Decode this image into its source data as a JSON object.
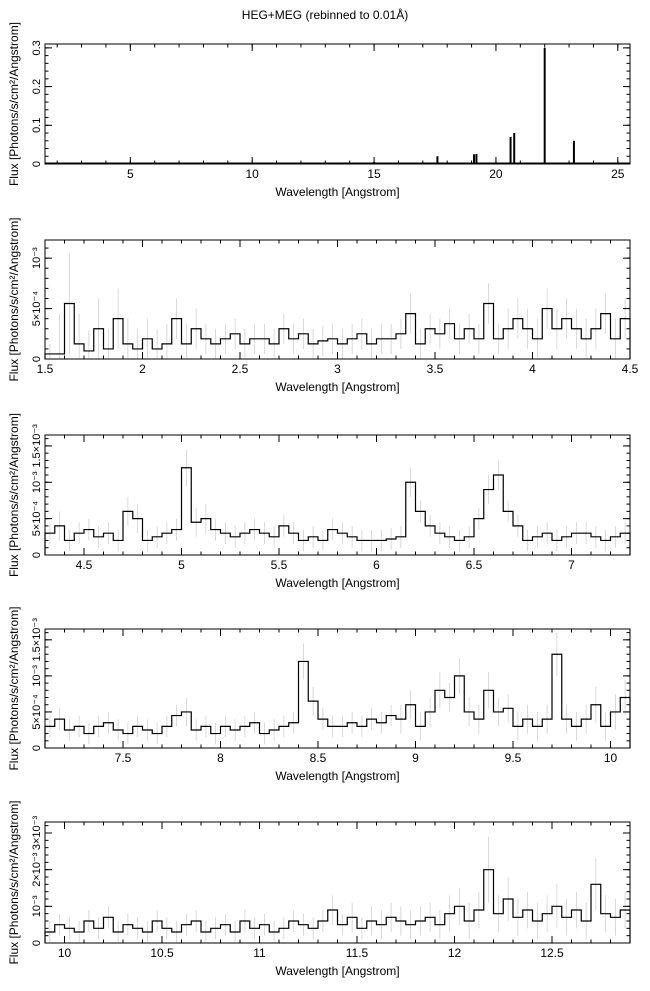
{
  "title": "HEG+MEG (rebinned to 0.01Å)",
  "chart_data": [
    {
      "type": "line",
      "xlabel": "Wavelength [Angstrom]",
      "ylabel": "Flux [Photons/s/cm²/Angstrom]",
      "xlim": [
        1.5,
        25.5
      ],
      "ylim": [
        0,
        0.31
      ],
      "xticks": [
        5,
        10,
        15,
        20,
        25
      ],
      "xtick_labels": [
        "5",
        "10",
        "15",
        "20",
        "25"
      ],
      "yticks": [
        0,
        0.1,
        0.2,
        0.3
      ],
      "ytick_labels": [
        "0",
        "0.1",
        "0.2",
        "0.3"
      ],
      "baseline": 0.002,
      "lines": [
        {
          "x": 13.8,
          "y": 0.004
        },
        {
          "x": 15.0,
          "y": 0.005
        },
        {
          "x": 16.0,
          "y": 0.004
        },
        {
          "x": 17.6,
          "y": 0.02
        },
        {
          "x": 19.1,
          "y": 0.025
        },
        {
          "x": 19.2,
          "y": 0.026
        },
        {
          "x": 20.6,
          "y": 0.07
        },
        {
          "x": 20.75,
          "y": 0.08
        },
        {
          "x": 22.0,
          "y": 0.3
        },
        {
          "x": 23.2,
          "y": 0.06
        }
      ]
    },
    {
      "type": "line",
      "xlabel": "Wavelength [Angstrom]",
      "ylabel": "Flux [Photons/s/cm²/Angstrom]",
      "xlim": [
        1.5,
        4.5
      ],
      "ylim": [
        0,
        0.00118
      ],
      "xticks": [
        1.5,
        2,
        2.5,
        3,
        3.5,
        4,
        4.5
      ],
      "xtick_labels": [
        "1.5",
        "2",
        "2.5",
        "3",
        "3.5",
        "4",
        "4.5"
      ],
      "yticks": [
        0,
        0.0005,
        0.001
      ],
      "ytick_labels": [
        "0",
        "5×10⁻⁴",
        "10⁻³"
      ],
      "spectrum": {
        "x": [
          1.5,
          1.55,
          1.6,
          1.65,
          1.7,
          1.75,
          1.8,
          1.85,
          1.9,
          1.95,
          2.0,
          2.05,
          2.1,
          2.15,
          2.2,
          2.25,
          2.3,
          2.35,
          2.4,
          2.45,
          2.5,
          2.55,
          2.6,
          2.65,
          2.7,
          2.75,
          2.8,
          2.85,
          2.9,
          2.95,
          3.0,
          3.05,
          3.1,
          3.15,
          3.2,
          3.25,
          3.3,
          3.35,
          3.4,
          3.45,
          3.5,
          3.55,
          3.6,
          3.65,
          3.7,
          3.75,
          3.8,
          3.85,
          3.9,
          3.95,
          4.0,
          4.05,
          4.1,
          4.15,
          4.2,
          4.25,
          4.3,
          4.35,
          4.4,
          4.45
        ],
        "y": [
          5e-05,
          5e-05,
          0.00055,
          0.00015,
          8e-05,
          0.0003,
          0.0001,
          0.0004,
          0.00015,
          0.0001,
          0.0002,
          0.0001,
          0.00015,
          0.0004,
          0.00015,
          0.0003,
          0.0002,
          0.00015,
          0.0002,
          0.00025,
          0.00015,
          0.0002,
          0.0002,
          0.00015,
          0.0003,
          0.0002,
          0.00025,
          0.00015,
          0.00018,
          0.0002,
          0.00015,
          0.0002,
          0.00025,
          0.00015,
          0.0002,
          0.0002,
          0.00025,
          0.00045,
          0.00015,
          0.0003,
          0.00025,
          0.00035,
          0.0002,
          0.0003,
          0.0002,
          0.00055,
          0.0002,
          0.0003,
          0.0004,
          0.0003,
          0.0002,
          0.0005,
          0.0003,
          0.0004,
          0.0003,
          0.0002,
          0.0003,
          0.00045,
          0.0002,
          0.0004
        ],
        "err": [
          0.0001,
          0.0004,
          0.0005,
          0.0003,
          0.0002,
          0.0003,
          0.0002,
          0.0003,
          0.00025,
          0.0002,
          0.0002,
          0.0002,
          0.0002,
          0.0002,
          0.0002,
          0.0002,
          0.00015,
          0.00015,
          0.00015,
          0.00015,
          0.00015,
          0.00015,
          0.00015,
          0.00015,
          0.00015,
          0.00015,
          0.00015,
          0.00015,
          0.00015,
          0.00015,
          0.00015,
          0.00015,
          0.00015,
          0.00015,
          0.00015,
          0.00015,
          0.00015,
          0.0002,
          0.00015,
          0.00015,
          0.00015,
          0.00015,
          0.00015,
          0.00015,
          0.00015,
          0.0002,
          0.00015,
          0.0002,
          0.0002,
          0.0002,
          0.0002,
          0.0002,
          0.0002,
          0.0002,
          0.0002,
          0.0002,
          0.0002,
          0.0002,
          0.0002,
          0.0002
        ]
      }
    },
    {
      "type": "line",
      "xlabel": "Wavelength [Angstrom]",
      "ylabel": "Flux [Photons/s/cm²/Angstrom]",
      "xlim": [
        4.3,
        7.3
      ],
      "ylim": [
        0,
        0.00165
      ],
      "xticks": [
        4.5,
        5,
        5.5,
        6,
        6.5,
        7
      ],
      "xtick_labels": [
        "4.5",
        "5",
        "5.5",
        "6",
        "6.5",
        "7"
      ],
      "yticks": [
        0,
        0.0005,
        0.001,
        0.0015
      ],
      "ytick_labels": [
        "0",
        "5×10⁻⁴",
        "10⁻³",
        "1.5×10⁻³"
      ],
      "spectrum": {
        "x": [
          4.3,
          4.35,
          4.4,
          4.45,
          4.5,
          4.55,
          4.6,
          4.65,
          4.7,
          4.75,
          4.8,
          4.85,
          4.9,
          4.95,
          5.0,
          5.05,
          5.1,
          5.15,
          5.2,
          5.25,
          5.3,
          5.35,
          5.4,
          5.45,
          5.5,
          5.55,
          5.6,
          5.65,
          5.7,
          5.75,
          5.8,
          5.85,
          5.9,
          5.95,
          6.0,
          6.05,
          6.1,
          6.15,
          6.2,
          6.25,
          6.3,
          6.35,
          6.4,
          6.45,
          6.5,
          6.55,
          6.6,
          6.65,
          6.7,
          6.75,
          6.8,
          6.85,
          6.9,
          6.95,
          7.0,
          7.05,
          7.1,
          7.15,
          7.2,
          7.25
        ],
        "y": [
          0.0003,
          0.0004,
          0.0002,
          0.0003,
          0.00035,
          0.00025,
          0.0003,
          0.0002,
          0.0006,
          0.0005,
          0.0002,
          0.00025,
          0.0003,
          0.00035,
          0.0012,
          0.00045,
          0.0005,
          0.00035,
          0.0003,
          0.00025,
          0.0003,
          0.00035,
          0.0003,
          0.00025,
          0.0004,
          0.0003,
          0.0002,
          0.00025,
          0.0002,
          0.00035,
          0.0003,
          0.00025,
          0.0002,
          0.0002,
          0.0002,
          0.00022,
          0.00025,
          0.001,
          0.0006,
          0.0004,
          0.0003,
          0.00025,
          0.0002,
          0.00025,
          0.0005,
          0.0009,
          0.0011,
          0.0006,
          0.0004,
          0.0002,
          0.00025,
          0.0003,
          0.0002,
          0.00025,
          0.0003,
          0.0003,
          0.00025,
          0.0002,
          0.00025,
          0.0003
        ],
        "err": [
          0.00015,
          0.0002,
          0.00015,
          0.00015,
          0.00015,
          0.00015,
          0.00015,
          0.00015,
          0.0002,
          0.0002,
          0.00015,
          0.00015,
          0.00015,
          0.00015,
          0.00025,
          0.0002,
          0.0002,
          0.00015,
          0.00015,
          0.00015,
          0.00015,
          0.00015,
          0.00015,
          0.00015,
          0.00015,
          0.00015,
          0.00015,
          0.00015,
          0.00015,
          0.00015,
          0.00015,
          0.00015,
          0.00015,
          0.00015,
          0.00015,
          0.00015,
          0.00015,
          0.0002,
          0.00015,
          0.00015,
          0.00015,
          0.00015,
          0.00015,
          0.00015,
          0.00015,
          0.0002,
          0.0002,
          0.00015,
          0.00015,
          0.00015,
          0.00015,
          0.00015,
          0.00015,
          0.00015,
          0.00015,
          0.00015,
          0.00015,
          0.00015,
          0.00015,
          0.00015
        ]
      }
    },
    {
      "type": "line",
      "xlabel": "Wavelength [Angstrom]",
      "ylabel": "Flux [Photons/s/cm²/Angstrom]",
      "xlim": [
        7.1,
        10.1
      ],
      "ylim": [
        0,
        0.00165
      ],
      "xticks": [
        7.5,
        8,
        8.5,
        9,
        9.5,
        10
      ],
      "xtick_labels": [
        "7.5",
        "8",
        "8.5",
        "9",
        "9.5",
        "10"
      ],
      "yticks": [
        0,
        0.0005,
        0.001,
        0.0015
      ],
      "ytick_labels": [
        "0",
        "5×10⁻⁴",
        "10⁻³",
        "1.5×10⁻³"
      ],
      "spectrum": {
        "x": [
          7.1,
          7.15,
          7.2,
          7.25,
          7.3,
          7.35,
          7.4,
          7.45,
          7.5,
          7.55,
          7.6,
          7.65,
          7.7,
          7.75,
          7.8,
          7.85,
          7.9,
          7.95,
          8.0,
          8.05,
          8.1,
          8.15,
          8.2,
          8.25,
          8.3,
          8.35,
          8.4,
          8.45,
          8.5,
          8.55,
          8.6,
          8.65,
          8.7,
          8.75,
          8.8,
          8.85,
          8.9,
          8.95,
          9.0,
          9.05,
          9.1,
          9.15,
          9.2,
          9.25,
          9.3,
          9.35,
          9.4,
          9.45,
          9.5,
          9.55,
          9.6,
          9.65,
          9.7,
          9.75,
          9.8,
          9.85,
          9.9,
          9.95,
          10.0,
          10.05
        ],
        "y": [
          0.0003,
          0.0004,
          0.00025,
          0.0003,
          0.0002,
          0.0003,
          0.00035,
          0.00025,
          0.0002,
          0.0003,
          0.00025,
          0.0002,
          0.0003,
          0.00045,
          0.0005,
          0.00025,
          0.0003,
          0.0002,
          0.0003,
          0.00025,
          0.0003,
          0.00035,
          0.0002,
          0.00025,
          0.0003,
          0.00035,
          0.0012,
          0.00065,
          0.0004,
          0.0003,
          0.0003,
          0.00035,
          0.0003,
          0.0004,
          0.00035,
          0.00045,
          0.0004,
          0.0006,
          0.0003,
          0.0005,
          0.0008,
          0.0007,
          0.001,
          0.0005,
          0.0004,
          0.0008,
          0.0005,
          0.00055,
          0.0003,
          0.0004,
          0.0003,
          0.0004,
          0.0013,
          0.0004,
          0.0003,
          0.0004,
          0.0006,
          0.0003,
          0.0005,
          0.0007
        ],
        "err": [
          0.00015,
          0.00015,
          0.00015,
          0.00015,
          0.00015,
          0.00015,
          0.00015,
          0.00015,
          0.00015,
          0.00015,
          0.00015,
          0.00015,
          0.00015,
          0.00015,
          0.0002,
          0.00015,
          0.00015,
          0.00015,
          0.00015,
          0.00015,
          0.00015,
          0.00015,
          0.00015,
          0.00015,
          0.00015,
          0.00015,
          0.00025,
          0.0002,
          0.00015,
          0.00015,
          0.00015,
          0.00015,
          0.00015,
          0.00015,
          0.00015,
          0.00015,
          0.0002,
          0.0002,
          0.0002,
          0.0002,
          0.00025,
          0.0002,
          0.00025,
          0.0002,
          0.0002,
          0.00025,
          0.0002,
          0.0002,
          0.0002,
          0.0002,
          0.0002,
          0.0002,
          0.0003,
          0.0002,
          0.0002,
          0.0002,
          0.00025,
          0.0002,
          0.00025,
          0.00025
        ]
      }
    },
    {
      "type": "line",
      "xlabel": "Wavelength [Angstrom]",
      "ylabel": "Flux [Photons/s/cm²/Angstrom]",
      "xlim": [
        9.9,
        12.9
      ],
      "ylim": [
        0,
        0.0033
      ],
      "xticks": [
        10,
        10.5,
        11,
        11.5,
        12,
        12.5
      ],
      "xtick_labels": [
        "10",
        "10.5",
        "11",
        "11.5",
        "12",
        "12.5"
      ],
      "yticks": [
        0,
        0.001,
        0.002,
        0.003
      ],
      "ytick_labels": [
        "0",
        "10⁻³",
        "2×10⁻³",
        "3×10⁻³"
      ],
      "spectrum": {
        "x": [
          9.9,
          9.95,
          10.0,
          10.05,
          10.1,
          10.15,
          10.2,
          10.25,
          10.3,
          10.35,
          10.4,
          10.45,
          10.5,
          10.55,
          10.6,
          10.65,
          10.7,
          10.75,
          10.8,
          10.85,
          10.9,
          10.95,
          11.0,
          11.05,
          11.1,
          11.15,
          11.2,
          11.25,
          11.3,
          11.35,
          11.4,
          11.45,
          11.5,
          11.55,
          11.6,
          11.65,
          11.7,
          11.75,
          11.8,
          11.85,
          11.9,
          11.95,
          12.0,
          12.05,
          12.1,
          12.15,
          12.2,
          12.25,
          12.3,
          12.35,
          12.4,
          12.45,
          12.5,
          12.55,
          12.6,
          12.65,
          12.7,
          12.75,
          12.8,
          12.85
        ],
        "y": [
          0.0003,
          0.0005,
          0.0004,
          0.0003,
          0.0006,
          0.0004,
          0.0007,
          0.0003,
          0.0005,
          0.0004,
          0.0003,
          0.0006,
          0.0004,
          0.0003,
          0.0005,
          0.0006,
          0.0003,
          0.0004,
          0.0005,
          0.0003,
          0.0006,
          0.0004,
          0.0005,
          0.0003,
          0.0004,
          0.0006,
          0.0005,
          0.0004,
          0.0006,
          0.0009,
          0.0005,
          0.0007,
          0.0004,
          0.0006,
          0.0005,
          0.0007,
          0.0006,
          0.0005,
          0.0006,
          0.0007,
          0.0005,
          0.0008,
          0.001,
          0.0006,
          0.0009,
          0.002,
          0.0008,
          0.0012,
          0.0007,
          0.0009,
          0.0006,
          0.0008,
          0.001,
          0.0007,
          0.0009,
          0.0006,
          0.0016,
          0.0008,
          0.0007,
          0.0009
        ],
        "err": [
          0.0003,
          0.0003,
          0.0003,
          0.0003,
          0.0003,
          0.0003,
          0.0003,
          0.0003,
          0.0003,
          0.0003,
          0.0003,
          0.0003,
          0.0003,
          0.0003,
          0.0003,
          0.0003,
          0.0003,
          0.0003,
          0.0003,
          0.0003,
          0.0003,
          0.0003,
          0.0003,
          0.0003,
          0.0003,
          0.0003,
          0.0003,
          0.0003,
          0.0003,
          0.0004,
          0.0003,
          0.0004,
          0.0003,
          0.0004,
          0.0004,
          0.0004,
          0.0004,
          0.0004,
          0.0004,
          0.0004,
          0.0004,
          0.0005,
          0.0005,
          0.0005,
          0.0005,
          0.0009,
          0.0005,
          0.0006,
          0.0005,
          0.0005,
          0.0005,
          0.0005,
          0.0006,
          0.0005,
          0.0005,
          0.0005,
          0.0007,
          0.0005,
          0.0005,
          0.0005
        ]
      }
    }
  ]
}
